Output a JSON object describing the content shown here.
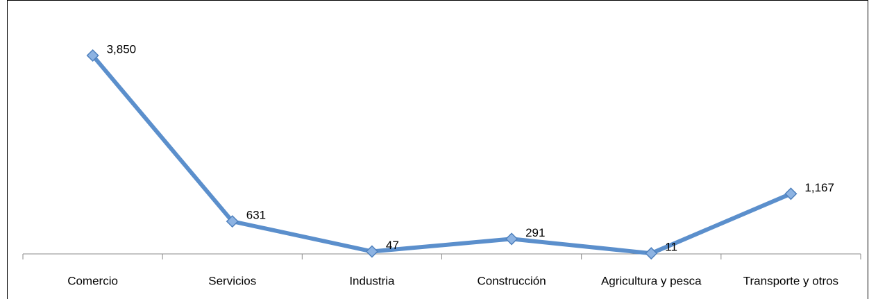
{
  "chart_data": {
    "type": "line",
    "categories": [
      "Comercio",
      "Servicios",
      "Industria",
      "Construcción",
      "Agricultura y pesca",
      "Transporte y otros"
    ],
    "series": [
      {
        "color": "#5b8fcc",
        "values": [
          3850,
          631,
          47,
          291,
          11,
          1167
        ],
        "value_labels": [
          "3,850",
          "631",
          "47",
          "291",
          "11",
          "1,167"
        ]
      }
    ]
  }
}
